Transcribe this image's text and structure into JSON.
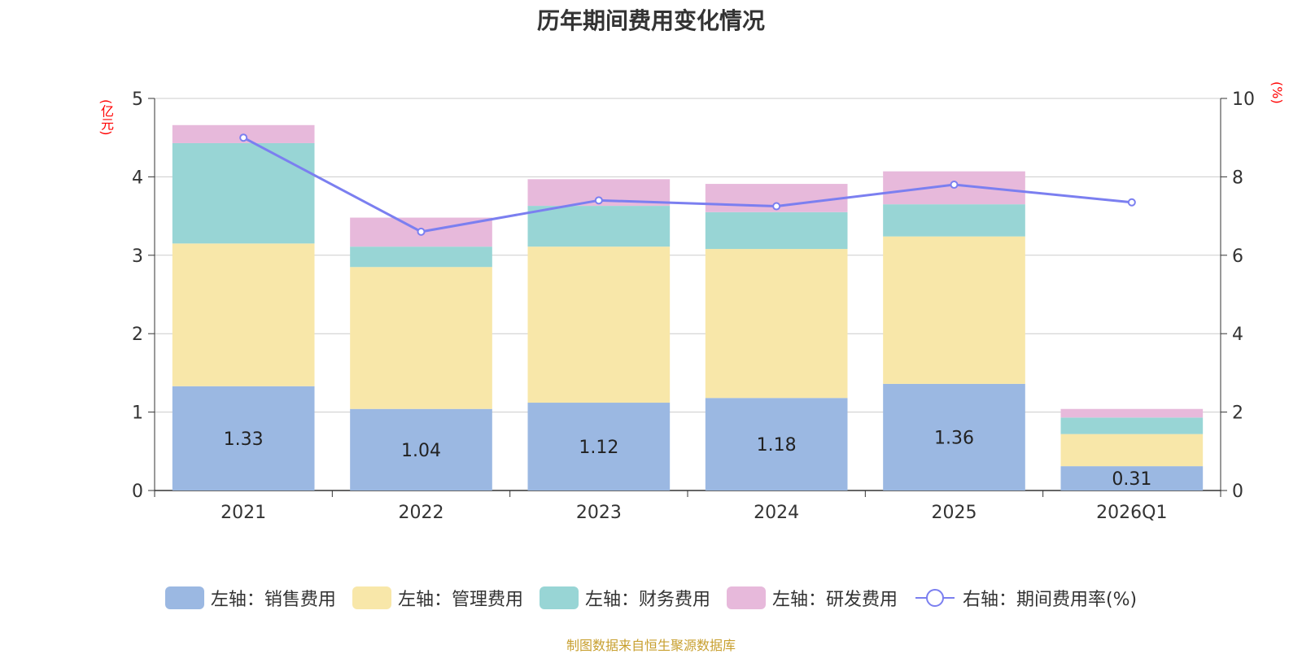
{
  "title": "历年期间费用变化情况",
  "source_text": "制图数据来自恒生聚源数据库",
  "colors": {
    "sales": "#9bb8e2",
    "admin": "#f8e7a9",
    "finance": "#98d5d5",
    "rnd": "#e7b9db",
    "rate_line": "#7b7ff0",
    "axis_unit": "#ff0000",
    "source": "#c8a030"
  },
  "chart_data": {
    "type": "bar",
    "stacked": true,
    "categories": [
      "2021",
      "2022",
      "2023",
      "2024",
      "2025",
      "2026Q1"
    ],
    "left_axis": {
      "unit": "(亿元)",
      "min": 0,
      "max": 5,
      "ticks": [
        0,
        1,
        2,
        3,
        4,
        5
      ]
    },
    "right_axis": {
      "unit": "(%)",
      "min": 0,
      "max": 10,
      "ticks": [
        0,
        2,
        4,
        6,
        8,
        10
      ]
    },
    "series": [
      {
        "key": "sales",
        "name": "左轴：销售费用",
        "axis": "left",
        "values": [
          1.33,
          1.04,
          1.12,
          1.18,
          1.36,
          0.31
        ],
        "show_labels": true
      },
      {
        "key": "admin",
        "name": "左轴：管理费用",
        "axis": "left",
        "values": [
          1.82,
          1.81,
          1.99,
          1.9,
          1.88,
          0.41
        ]
      },
      {
        "key": "finance",
        "name": "左轴：财务费用",
        "axis": "left",
        "values": [
          1.28,
          0.26,
          0.52,
          0.47,
          0.41,
          0.21
        ]
      },
      {
        "key": "rnd",
        "name": "左轴：研发费用",
        "axis": "left",
        "values": [
          0.23,
          0.37,
          0.34,
          0.36,
          0.42,
          0.11
        ]
      }
    ],
    "line_series": {
      "key": "rate",
      "name": "右轴：期间费用率(%)",
      "axis": "right",
      "type": "line",
      "values": [
        9.0,
        6.6,
        7.4,
        7.25,
        7.8,
        7.35
      ]
    },
    "legend_position": "bottom",
    "grid": true
  }
}
